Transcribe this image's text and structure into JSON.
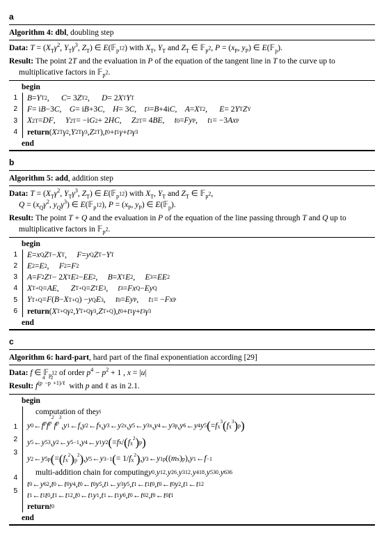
{
  "panel_a": {
    "label": "a",
    "title_prefix": "Algorithm 4: dbl",
    "title_suffix": ", doubling step",
    "data_html": "<span class='ital'>T</span> = (<span class='ital'>X</span><span class='sub'>T</span><span class='ital'>γ</span><span class='sup'>2</span>, <span class='ital'>Y</span><span class='sub'>T</span><span class='ital'>γ</span><span class='sup'>3</span>, <span class='ital'>Z</span><span class='sub'>T</span>) ∈ <span class='ital'>E</span>(𝔽<span class='sub'>p<span class='sup'>12</span></span>) with <span class='ital'>X</span><span class='sub'>T</span>, <span class='ital'>Y</span><span class='sub'>T</span> and <span class='ital'>Z</span><span class='sub'>T</span> ∈ 𝔽<span class='sub'>p<span class='sup'>2</span></span>, <span class='ital'>P</span> = (<span class='ital'>x</span><span class='sub'>P</span>, <span class='ital'>y</span><span class='sub'>P</span>) ∈ <span class='ital'>E</span>(𝔽<span class='sub'>p</span>).",
    "result_html": "The point 2<span class='ital'>T</span> and the evaluation in <span class='ital'>P</span> of the equation of the tangent line in <span class='ital'>T</span> to the curve up to multiplicative factors in 𝔽<span class='sub'>p<span class='sup'>2</span></span>.",
    "lines": [
      "<span class='ital'>B</span> = <span class='ital'>Y</span><span class='sub'>T</span><span class='sup'>2</span>,&nbsp;&nbsp;&nbsp;&nbsp;&nbsp;&nbsp;<span class='ital'>C</span> = 3<span class='ital'>Z</span><span class='sub'>T</span><span class='sup'>2</span>,&nbsp;&nbsp;&nbsp;&nbsp;&nbsp;&nbsp;<span class='ital'>D</span> = 2<span class='ital'>X</span><span class='sub'>T</span><span class='ital'>Y</span><span class='sub'>T</span>",
      "<span class='ital'>F</span> = i<span class='ital'>B</span>−3<span class='ital'>C</span>,&nbsp;&nbsp;&nbsp;&nbsp;<span class='ital'>G</span> = i<span class='ital'>B</span>+3<span class='ital'>C</span>,&nbsp;&nbsp;&nbsp;&nbsp;<span class='ital'>H</span> = 3<span class='ital'>C</span>,&nbsp;&nbsp;&nbsp;&nbsp;<span class='ital'>t</span><span class='sub'>3</span> = <span class='ital'>B</span>+4i<span class='ital'>C</span>,&nbsp;&nbsp;&nbsp;&nbsp;<span class='ital'>A</span> = <span class='ital'>X</span><span class='sub'>T</span><span class='sup'>2</span>,&nbsp;&nbsp;&nbsp;&nbsp;&nbsp;&nbsp;<span class='ital'>E</span> = 2<span class='ital'>Y</span><span class='sub'>T</span><span class='ital'>Z</span><span class='sub'>Y</span>",
      "<span class='ital'>X</span><span class='sub'>2T</span> = <span class='ital'>DF</span>,&nbsp;&nbsp;&nbsp;&nbsp;&nbsp;<span class='ital'>Y</span><span class='sub'>2T</span> = −i<span class='ital'>G</span><span class='sup'>2</span> + 2<span class='ital'>HC</span>,&nbsp;&nbsp;&nbsp;&nbsp;&nbsp;<span class='ital'>Z</span><span class='sub'>2T</span> = 4<span class='ital'>BE</span>,&nbsp;&nbsp;&nbsp;&nbsp;&nbsp;<span class='ital'>t</span><span class='sub'>0</span> = <span class='ital'>Fy</span><span class='sub'>P</span>,&nbsp;&nbsp;&nbsp;&nbsp;&nbsp;<span class='ital'>t</span><span class='sub'>1</span> = −3<span class='ital'>Ax</span><span class='sub'>P</span>",
      "<span class='return'>return</span> (<span class='ital'>X</span><span class='sub'>2T</span><span class='ital'>γ</span><span class='sup'>2</span>, <span class='ital'>Y</span><span class='sub'>2T</span><span class='ital'>γ</span><span class='sup'>3</span>, <span class='ital'>Z</span><span class='sub'>2T</span>), <span class='ital'>t</span><span class='sub'>0</span> + <span class='ital'>t</span><span class='sub'>1</span><span class='ital'>γ</span> + <span class='ital'>t</span><span class='sub'>3</span><span class='ital'>γ</span><span class='sup'>3</span>"
    ]
  },
  "panel_b": {
    "label": "b",
    "title_prefix": "Algorithm 5: add",
    "title_suffix": ", addition step",
    "data_html": "<span class='ital'>T</span> = (<span class='ital'>X</span><span class='sub'>T</span><span class='ital'>γ</span><span class='sup'>2</span>, <span class='ital'>Y</span><span class='sub'>T</span><span class='ital'>γ</span><span class='sup'>3</span>, <span class='ital'>Z</span><span class='sub'>T</span>) ∈ <span class='ital'>E</span>(𝔽<span class='sub'>p<span class='sup'>12</span></span>) with <span class='ital'>X</span><span class='sub'>T</span>, <span class='ital'>Y</span><span class='sub'>T</span> and <span class='ital'>Z</span><span class='sub'>T</span> ∈ 𝔽<span class='sub'>p<span class='sup'>2</span></span>,<br><span class='ital'>Q</span> = (<span class='ital'>x</span><span class='sub'>Q</span><span class='ital'>γ</span><span class='sup'>2</span>, <span class='ital'>y</span><span class='sub'>Q</span><span class='ital'>γ</span><span class='sup'>3</span>) ∈ <span class='ital'>E</span>(𝔽<span class='sub'>p<span class='sup'>12</span></span>), <span class='ital'>P</span> = (<span class='ital'>x</span><span class='sub'>P</span>, <span class='ital'>y</span><span class='sub'>P</span>) ∈ <span class='ital'>E</span>(𝔽<span class='sub'>p</span>).",
    "result_html": "The point <span class='ital'>T</span> + <span class='ital'>Q</span> and the evaluation in <span class='ital'>P</span> of the equation of the line passing through <span class='ital'>T</span> and <span class='ital'>Q</span> up to multiplicative factors in 𝔽<span class='sub'>p<span class='sup'>2</span></span>.",
    "lines": [
      "<span class='ital'>E</span> = <span class='ital'>x</span><span class='sub'>Q</span><span class='ital'>Z</span><span class='sub'>T</span> − <span class='ital'>X</span><span class='sub'>T</span>,&nbsp;&nbsp;&nbsp;&nbsp;&nbsp;<span class='ital'>F</span> = <span class='ital'>y</span><span class='sub'>Q</span><span class='ital'>Z</span><span class='sub'>T</span> − <span class='ital'>Y</span><span class='sub'>T</span>",
      "<span class='ital'>E</span><span class='sub'>2</span> = <span class='ital'>E</span><span class='sup'>2</span>,&nbsp;&nbsp;&nbsp;&nbsp;&nbsp;<span class='ital'>F</span><span class='sub'>2</span> = <span class='ital'>F</span><span class='sup'>2</span>",
      "<span class='ital'>A</span> = <span class='ital'>F</span><span class='sub'>2</span><span class='ital'>Z</span><span class='sub'>T</span> − 2<span class='ital'>X</span><span class='sub'>T</span><span class='ital'>E</span><span class='sub'>2</span> − <span class='ital'>EE</span><span class='sub'>2</span>,&nbsp;&nbsp;&nbsp;&nbsp;&nbsp;<span class='ital'>B</span> = <span class='ital'>X</span><span class='sub'>T</span><span class='ital'>E</span><span class='sub'>2</span>,&nbsp;&nbsp;&nbsp;&nbsp;&nbsp;<span class='ital'>E</span><span class='sub'>3</span> = <span class='ital'>EE</span><span class='sub'>2</span>",
      "<span class='ital'>X</span><span class='sub'>T+Q</span> = <span class='ital'>AE</span>,&nbsp;&nbsp;&nbsp;&nbsp;&nbsp;&nbsp;<span class='ital'>Z</span><span class='sub'>T+Q</span> = <span class='ital'>Z</span><span class='sub'>T</span><span class='ital'>E</span><span class='sub'>3</span>,&nbsp;&nbsp;&nbsp;&nbsp;&nbsp;<span class='ital'>t</span><span class='sub'>3</span> = <span class='ital'>Fx</span><span class='sub'>Q</span> − <span class='ital'>Ey</span><span class='sub'>Q</span>",
      "<span class='ital'>Y</span><span class='sub'>T+Q</span> = <span class='ital'>F</span>(<span class='ital'>B</span> − <span class='ital'>X</span><span class='sub'>T+Q</span>) − <span class='ital'>y</span><span class='sub'>Q</span><span class='ital'>E</span><span class='sub'>3</span>,&nbsp;&nbsp;&nbsp;&nbsp;&nbsp;<span class='ital'>t</span><span class='sub'>0</span> = <span class='ital'>Ey</span><span class='sub'>P</span>,&nbsp;&nbsp;&nbsp;&nbsp;&nbsp;<span class='ital'>t</span><span class='sub'>1</span> = −<span class='ital'>Fx</span><span class='sub'>P</span>",
      "<span class='return'>return</span> (<span class='ital'>X</span><span class='sub'>T+Q</span><span class='ital'>γ</span><span class='sup'>2</span>, <span class='ital'>Y</span><span class='sub'>T+Q</span><span class='ital'>γ</span><span class='sup'>3</span>, <span class='ital'>Z</span><span class='sub'>T+Q</span>), <span class='ital'>t</span><span class='sub'>0</span> + <span class='ital'>t</span><span class='sub'>1</span><span class='ital'>γ</span> + <span class='ital'>t</span><span class='sub'>3</span><span class='ital'>γ</span><span class='sup'>3</span>"
    ]
  },
  "panel_c": {
    "label": "c",
    "title_prefix": "Algorithm 6: hard-part",
    "title_suffix": ", hard part of the final exponentiation according [29]",
    "data_html": "<span class='ital'>f</span> ∈ 𝔽<span class='sub'>p<span class='sup'>12</span></span> of order <span class='ital'>p</span><span class='sup'>4</span> − <span class='ital'>p</span><span class='sup'>2</span> + 1 , <span class='ital'>x</span> = |<span class='ital'>u</span>|",
    "result_html": "<span class='ital'>f</span><span class='sup'>(p<span class='supsup'>4</span>−p<span class='supsup'>2</span>+1)/ℓ</span>&nbsp; with <span class='ital'>p</span> and ℓ as in 2.1.",
    "pre_text": "computation of the <span class='ital'>y</span><span class='sub'>i</span>",
    "lines": [
      "<span class='ital'>y</span><span class='sub'>0</span> ← <span class='ital'>f<span class='sup'>p</span>f<span class='sup'>p<span class='supsup'>2</span></span>f<span class='sup'>p<span class='supsup'>3</span></span></span>, <span class='ital'>y</span><span class='sub'>1</span> ← <span class='ital'>f</span>, <span class='ital'>y</span><span class='sub'>2</span> ← <span class='ital'>f</span><span class='sup'>x</span>, <span class='ital'>y</span><span class='sub'>3</span> ← <span class='ital'>y</span><span class='sub'>2</span><span class='sup'>x</span>, <span class='ital'>y</span><span class='sub'>5</span> ← <span class='ital'>y</span><span class='sub'>3</span><span class='sup'>x</span>, <span class='ital'>y</span><span class='sub'>4</span> ← <span class='ital'>y</span><span class='sub'>3</span><span class='sup'>p</span>, <span class='ital'>y</span><span class='sub'>6</span> ← <span class='ital'>y</span><span class='sub'>4</span><span class='ital'>y</span><span class='sub'>5</span> <span class='bigl'>(</span>= <span class='ital'>f</span><span class='sup'>x<span class='supsup'>3</span></span><span class='bigl'>(</span><span class='ital'>f</span><span class='sup'>x<span class='supsup'>3</span></span><span class='bigl'>)</span><span class='sup'>p</span><span class='bigl'>)</span>",
      "<span class='ital'>y</span><span class='sub'>5</span> ← <span class='ital'>y</span><span class='sub'>5</span><span class='sup'>3</span>, <span class='ital'>y</span><span class='sub'>2</span> ← <span class='ital'>y</span><span class='sub'>5</span><span class='sup'>−1</span>, <span class='ital'>y</span><span class='sub'>4</span> ← <span class='ital'>y</span><span class='sub'>1</span><span class='ital'>y</span><span class='sub'>2</span> <span class='bigl'>(</span>= <span class='ital'>f</span><span class='sup'>x</span>/<span class='bigl'>(</span><span class='ital'>f</span><span class='sup'>x<span class='supsup'>2</span></span><span class='bigl'>)</span><span class='sup'>p</span><span class='bigl'>)</span>",
      "<span class='ital'>y</span><span class='sub'>2</span> ← <span class='ital'>y</span><span class='sub'>5</span><span class='sup'>p</span> <span class='bigl'>(</span>= <span class='bigl'>(</span><span class='ital'>f</span><span class='sup'>x<span class='supsup'>2</span></span><span class='bigl'>)</span><span class='sup'>p<span class='supsup'>2</span></span><span class='bigl'>)</span>, <span class='ital'>y</span><span class='sub'>5</span> ← <span class='ital'>y</span><span class='sub'>3</span><span class='sup'>−1</span> <span class='bigl'>(</span>= 1/<span class='ital'>f</span><span class='sup'>x<span class='supsup'>2</span></span><span class='bigl'>)</span>, <span class='ital'>y</span><span class='sub'>3</span> ← <span class='ital'>y</span><span class='sub'>1</span><span class='sup'>p</span> ((<span class='ital'>m</span><span class='sup'>x</span>)<span class='sup'>p</span>), <span class='ital'>y</span><span class='sub'>1</span> ← <span class='ital'>f</span><span class='sup'>−1</span>",
      "<span class='ital'>t</span><span class='sub'>0</span> ← <span class='ital'>y</span><span class='sub'>6</span><span class='sup'>2</span>, <span class='ital'>t</span><span class='sub'>0</span> ← <span class='ital'>t</span><span class='sub'>0</span><span class='ital'>y</span><span class='sub'>4</span>, <span class='ital'>t</span><span class='sub'>0</span> ← <span class='ital'>t</span><span class='sub'>0</span><span class='ital'>y</span><span class='sub'>5</span>, <span class='ital'>t</span><span class='sub'>1</span> ← <span class='ital'>y</span><span class='sub'>3</span><span class='ital'>y</span><span class='sub'>5</span>, <span class='ital'>t</span><span class='sub'>1</span> ← <span class='ital'>t</span><span class='sub'>1</span><span class='ital'>t</span><span class='sub'>0</span>, <span class='ital'>t</span><span class='sub'>0</span> ← <span class='ital'>t</span><span class='sub'>0</span><span class='ital'>y</span><span class='sub'>2</span>, <span class='ital'>t</span><span class='sub'>1</span> ← <span class='ital'>t</span><span class='sub'>1</span><span class='sup'>2</span>",
      "<span class='ital'>t</span><span class='sub'>1</span> ← <span class='ital'>t</span><span class='sub'>1</span><span class='ital'>t</span><span class='sub'>0</span>, <span class='ital'>t</span><span class='sub'>1</span> ← <span class='ital'>t</span><span class='sub'>1</span><span class='sup'>2</span>, <span class='ital'>t</span><span class='sub'>0</span> ← <span class='ital'>t</span><span class='sub'>1</span><span class='ital'>y</span><span class='sub'>1</span>, <span class='ital'>t</span><span class='sub'>1</span> ← <span class='ital'>t</span><span class='sub'>1</span><span class='ital'>y</span><span class='sub'>0</span>, <span class='ital'>t</span><span class='sub'>0</span> ← <span class='ital'>t</span><span class='sub'>0</span><span class='sup'>2</span>, <span class='ital'>t</span><span class='sub'>0</span> ← <span class='ital'>t</span><span class='sub'>0</span><span class='ital'>t</span><span class='sub'>1</span>"
    ],
    "mid_text": "multi-addition chain for computing <span class='ital'>y</span><span class='sub'>0</span>.<span class='ital'>y</span><span class='sub'>1</span><span class='sup'>2</span>.<span class='ital'>y</span><span class='sub'>2</span><span class='sup'>6</span>.<span class='ital'>y</span><span class='sub'>3</span><span class='sup'>12</span>.<span class='ital'>y</span><span class='sub'>4</span><span class='sup'>18</span>.<span class='ital'>y</span><span class='sub'>5</span><span class='sup'>30</span>.<span class='ital'>y</span><span class='sub'>6</span><span class='sup'>36</span>",
    "return_line": "<span class='return'>return</span> <span class='ital'>t</span><span class='sub'>0</span>"
  }
}
